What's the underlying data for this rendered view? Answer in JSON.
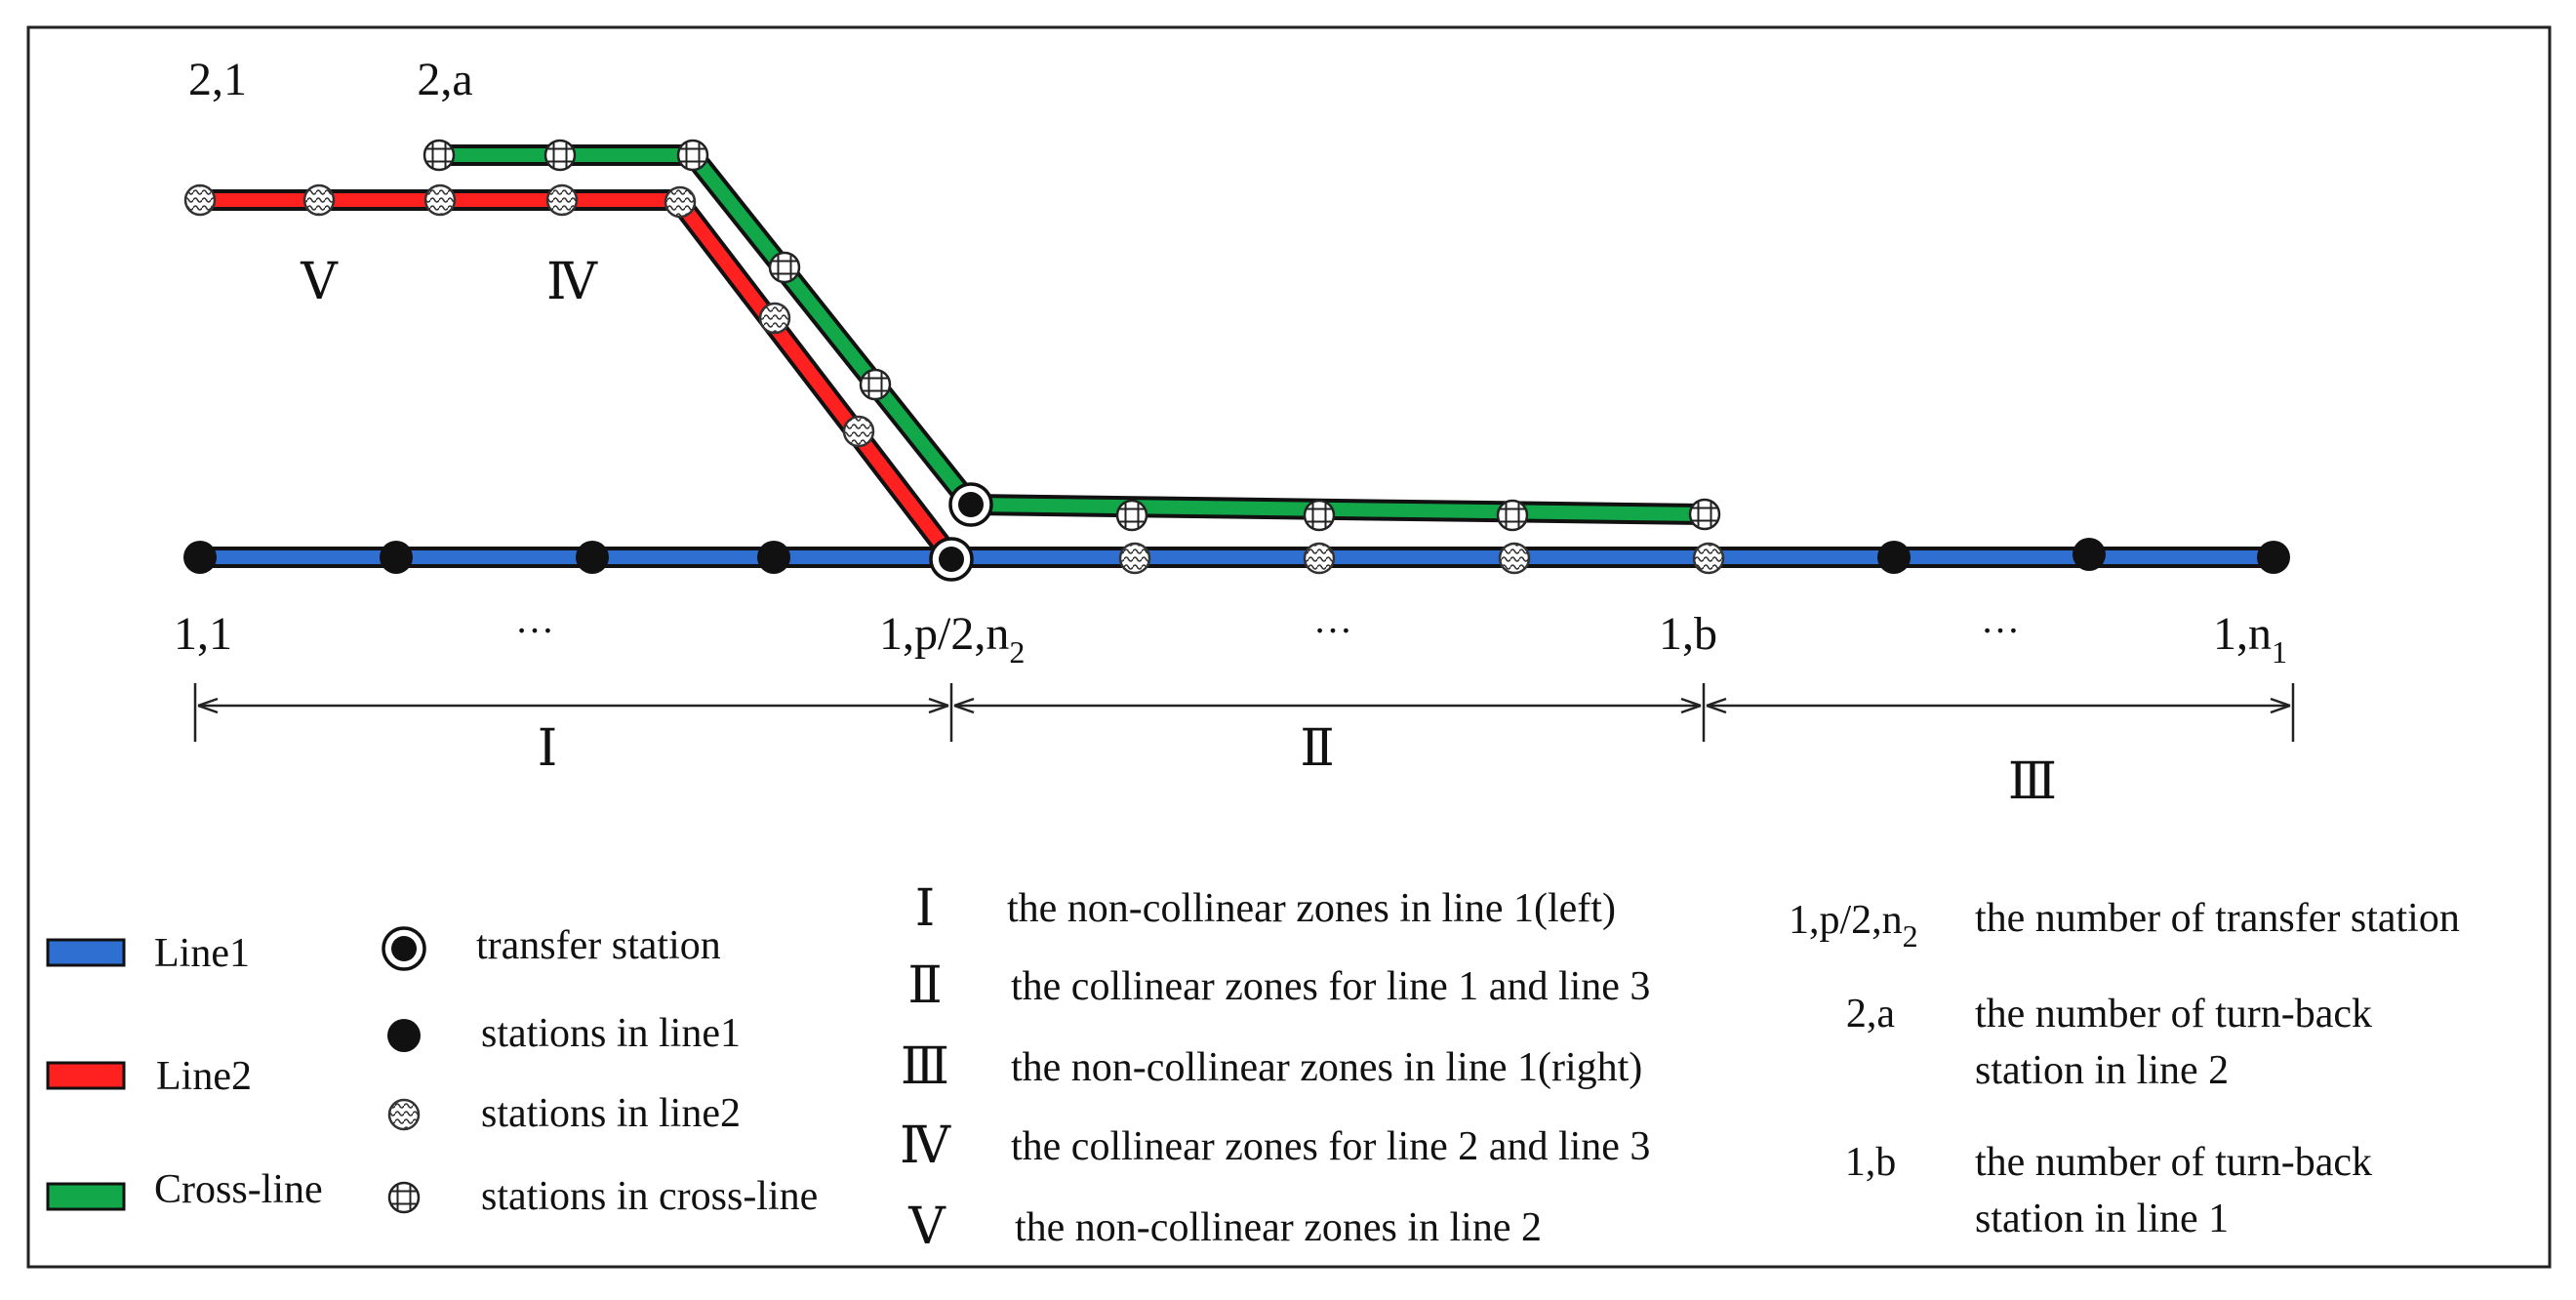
{
  "colors": {
    "line1": "#2e6fd1",
    "line2": "#ff2020",
    "cross_line": "#12a84a",
    "outline": "#111111",
    "background": "#ffffff"
  },
  "station_labels": {
    "line2_start": "2,1",
    "turn_back_2a": "2,a",
    "line1_start": "1,1",
    "transfer_main": "1,p/2,n",
    "transfer_sub": "2",
    "turn_back_1b": "1,b",
    "line1_end_main": "1,n",
    "line1_end_sub": "1",
    "ellipsis": "…"
  },
  "zone_labels": {
    "I": "Ⅰ",
    "II": "Ⅱ",
    "III": "Ⅲ",
    "IV": "Ⅳ",
    "V": "Ⅴ"
  },
  "legend_lines": [
    {
      "label": "Line1",
      "color_key": "line1",
      "icon": "blue-line-swatch-icon"
    },
    {
      "label": "Line2",
      "color_key": "line2",
      "icon": "red-line-swatch-icon"
    },
    {
      "label": "Cross-line",
      "color_key": "cross_line",
      "icon": "green-line-swatch-icon"
    }
  ],
  "legend_stations": [
    {
      "label": "transfer station",
      "icon": "transfer-station-icon"
    },
    {
      "label": "stations in line1",
      "icon": "line1-station-icon"
    },
    {
      "label": "stations in line2",
      "icon": "line2-station-icon"
    },
    {
      "label": "stations in cross-line",
      "icon": "cross-line-station-icon"
    }
  ],
  "legend_zones": [
    {
      "symbol": "Ⅰ",
      "text": "the non-collinear zones in line 1(left)"
    },
    {
      "symbol": "Ⅱ",
      "text": "the collinear zones for line 1 and line 3"
    },
    {
      "symbol": "Ⅲ",
      "text": "the non-collinear zones in line 1(right)"
    },
    {
      "symbol": "Ⅳ",
      "text": "the collinear zones for line 2 and line 3"
    },
    {
      "symbol": "Ⅴ",
      "text": "the non-collinear zones in line 2"
    }
  ],
  "legend_notation": [
    {
      "symbol_main": "1,p/2,n",
      "symbol_sub": "2",
      "lines": [
        "the number of transfer station"
      ]
    },
    {
      "symbol_main": "2,a",
      "symbol_sub": "",
      "lines": [
        "the number of turn-back",
        "station in line 2"
      ]
    },
    {
      "symbol_main": "1,b",
      "symbol_sub": "",
      "lines": [
        "the number of turn-back",
        "station in line 1"
      ]
    }
  ]
}
